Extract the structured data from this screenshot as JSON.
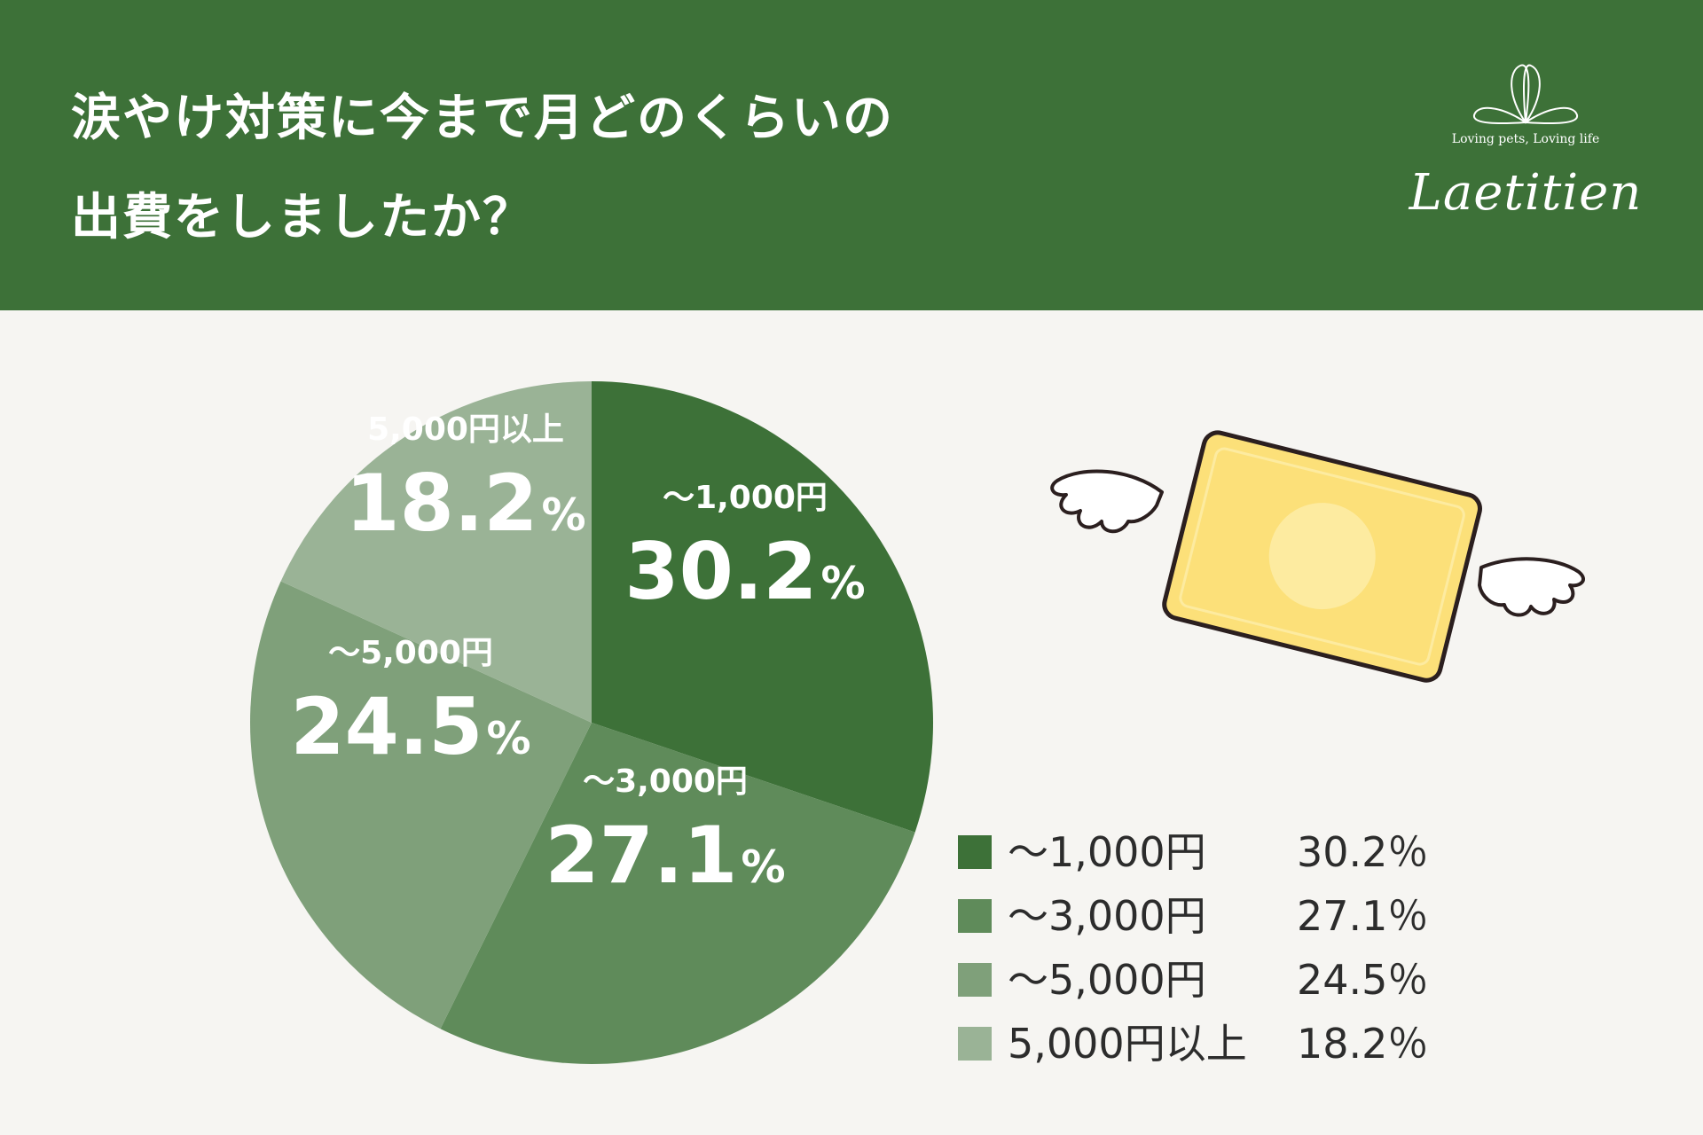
{
  "header": {
    "title_line1": "涙やけ対策に今まで月どのくらいの",
    "title_line2": "出費をしましたか？",
    "logo_tagline": "Loving pets, Loving life",
    "logo_brand": "Laetitien",
    "background": "#3d7138"
  },
  "chart_data": {
    "type": "pie",
    "title": "涙やけ対策に今まで月どのくらいの出費をしましたか？",
    "unit": "%",
    "slices": [
      {
        "label": "〜1,000円",
        "value": 30.2,
        "display": "30.2",
        "color": "#3d7138"
      },
      {
        "label": "〜3,000円",
        "value": 27.1,
        "display": "27.1",
        "color": "#5f8b5a"
      },
      {
        "label": "〜5,000円",
        "value": 24.5,
        "display": "24.5",
        "color": "#7fa07a"
      },
      {
        "label": "5,000円以上",
        "value": 18.2,
        "display": "18.2",
        "color": "#9ab396"
      }
    ],
    "legend": [
      {
        "label": "〜1,000円",
        "value": "30.2％"
      },
      {
        "label": "〜3,000円",
        "value": "27.1％"
      },
      {
        "label": "〜5,000円",
        "value": "24.5％"
      },
      {
        "label": "5,000円以上",
        "value": "18.2％"
      }
    ],
    "start_angle": "12 o'clock",
    "direction": "clockwise",
    "legend_placement": "bottom-right"
  },
  "illustration": {
    "icon": "winged-coin-bill-icon",
    "colors": {
      "bill": "#fce079",
      "coin": "#fdeba0",
      "outline": "#2b1f1f",
      "wing": "#ffffff"
    }
  }
}
